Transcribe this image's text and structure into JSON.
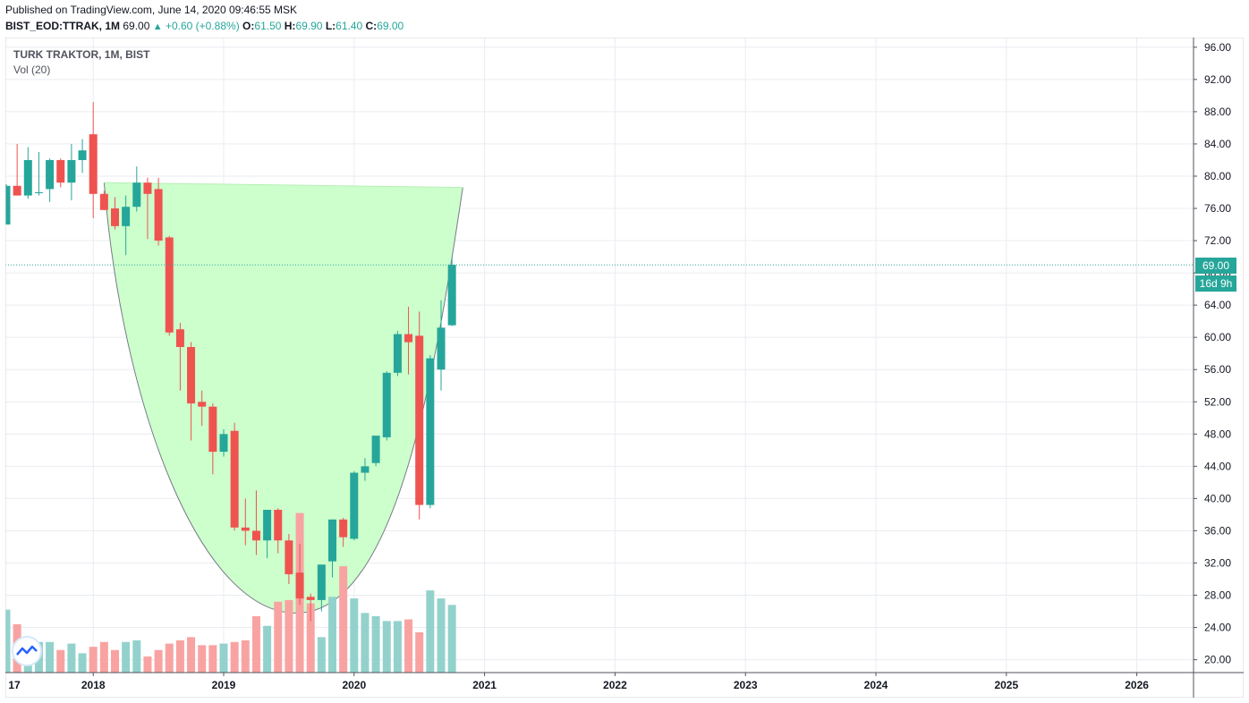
{
  "header": {
    "published": "Published on TradingView.com, June 14, 2020 09:46:55 MSK",
    "symbol": "BIST_EOD:TTRAK, 1M",
    "last": "69.00",
    "change": "+0.60 (+0.88%)",
    "o_label": "O:",
    "o": "61.50",
    "h_label": "H:",
    "h": "69.90",
    "l_label": "L:",
    "l": "61.40",
    "c_label": "C:",
    "c": "69.00"
  },
  "legend": {
    "title": "TURK TRAKTOR, 1M, BIST",
    "vol": "Vol (20)"
  },
  "price_label": {
    "value": "69.00",
    "countdown": "16d 9h"
  },
  "colors": {
    "up": "#26a69a",
    "down": "#ef5350",
    "vol_up": "#93d2cc",
    "vol_down": "#f8a3a2",
    "cup_fill": "#ccffcc",
    "grid": "#e9ecf1"
  },
  "chart_data": {
    "type": "candlestick",
    "title": "TURK TRAKTOR, 1M, BIST",
    "ylim": [
      18.4,
      97.2
    ],
    "y_ticks": [
      "96.00",
      "92.00",
      "88.00",
      "84.00",
      "80.00",
      "76.00",
      "72.00",
      "68.00",
      "64.00",
      "60.00",
      "56.00",
      "52.00",
      "48.00",
      "44.00",
      "40.00",
      "36.00",
      "32.00",
      "28.00",
      "24.00",
      "20.00"
    ],
    "x_ticks": [
      "17",
      "2018",
      "2019",
      "2020",
      "2021",
      "2022",
      "2023",
      "2024",
      "2025",
      "2026"
    ],
    "x_tick_months": [
      -4,
      8,
      20,
      32,
      44,
      56,
      68,
      80,
      92,
      104
    ],
    "first_month_label": "2017-06",
    "candles": [
      {
        "m": "2017-06",
        "o": 74,
        "h": 79,
        "l": 74,
        "c": 78.8
      },
      {
        "m": "2017-07",
        "o": 78.8,
        "h": 84,
        "l": 77.6,
        "c": 77.6
      },
      {
        "m": "2017-08",
        "o": 77.6,
        "h": 83.6,
        "l": 77.2,
        "c": 82
      },
      {
        "m": "2017-09",
        "o": 78,
        "h": 83,
        "l": 77.6,
        "c": 78
      },
      {
        "m": "2017-10",
        "o": 78.4,
        "h": 82.2,
        "l": 76.8,
        "c": 82
      },
      {
        "m": "2017-11",
        "o": 82,
        "h": 82.2,
        "l": 78.6,
        "c": 79.2
      },
      {
        "m": "2017-12",
        "o": 79.2,
        "h": 84,
        "l": 77,
        "c": 82
      },
      {
        "m": "2018-01",
        "o": 82,
        "h": 84.6,
        "l": 80.4,
        "c": 83.2
      },
      {
        "m": "2018-02",
        "o": 85.2,
        "h": 89.2,
        "l": 74.8,
        "c": 77.8
      },
      {
        "m": "2018-03",
        "o": 77.8,
        "h": 78.2,
        "l": 75.8,
        "c": 75.8
      },
      {
        "m": "2018-04",
        "o": 76,
        "h": 77.4,
        "l": 73.4,
        "c": 73.8
      },
      {
        "m": "2018-05",
        "o": 73.8,
        "h": 77.6,
        "l": 70.2,
        "c": 76.2
      },
      {
        "m": "2018-06",
        "o": 76.2,
        "h": 81.2,
        "l": 75.6,
        "c": 79.2
      },
      {
        "m": "2018-07",
        "o": 79.2,
        "h": 79.8,
        "l": 72.2,
        "c": 77.8
      },
      {
        "m": "2018-08",
        "o": 78.4,
        "h": 79.8,
        "l": 71.4,
        "c": 72
      },
      {
        "m": "2018-09",
        "o": 72.4,
        "h": 72.6,
        "l": 60.2,
        "c": 60.6
      },
      {
        "m": "2018-10",
        "o": 61,
        "h": 61.8,
        "l": 53.4,
        "c": 58.8
      },
      {
        "m": "2018-11",
        "o": 58.8,
        "h": 59.4,
        "l": 47.2,
        "c": 51.8
      },
      {
        "m": "2018-12",
        "o": 52,
        "h": 53.4,
        "l": 49,
        "c": 51.4
      },
      {
        "m": "2019-01",
        "o": 51.4,
        "h": 51.8,
        "l": 43,
        "c": 45.8
      },
      {
        "m": "2019-02",
        "o": 45.8,
        "h": 48.6,
        "l": 45.2,
        "c": 48
      },
      {
        "m": "2019-03",
        "o": 48.4,
        "h": 49.4,
        "l": 36,
        "c": 36.4
      },
      {
        "m": "2019-04",
        "o": 36.4,
        "h": 40,
        "l": 34.2,
        "c": 36
      },
      {
        "m": "2019-05",
        "o": 36,
        "h": 41,
        "l": 33,
        "c": 34.8
      },
      {
        "m": "2019-06",
        "o": 34.8,
        "h": 38.6,
        "l": 32.6,
        "c": 38.6
      },
      {
        "m": "2019-07",
        "o": 38.6,
        "h": 38.8,
        "l": 33.2,
        "c": 34.8
      },
      {
        "m": "2019-08",
        "o": 34.8,
        "h": 35.6,
        "l": 29.4,
        "c": 30.6
      },
      {
        "m": "2019-09",
        "o": 30.8,
        "h": 34.4,
        "l": 26.8,
        "c": 27.6
      },
      {
        "m": "2019-10",
        "o": 27.8,
        "h": 28.2,
        "l": 24.8,
        "c": 27.4
      },
      {
        "m": "2019-11",
        "o": 27.4,
        "h": 31.8,
        "l": 26,
        "c": 31.8
      },
      {
        "m": "2019-12",
        "o": 32.2,
        "h": 37.4,
        "l": 30.2,
        "c": 37.4
      },
      {
        "m": "2020-01",
        "o": 37.4,
        "h": 37.6,
        "l": 34,
        "c": 35.2
      },
      {
        "m": "2020-02",
        "o": 35,
        "h": 43.4,
        "l": 34.8,
        "c": 43.2
      },
      {
        "m": "2020-03",
        "o": 43.2,
        "h": 45,
        "l": 42.2,
        "c": 44
      },
      {
        "m": "2020-04",
        "o": 44.4,
        "h": 47.8,
        "l": 44,
        "c": 47.8
      },
      {
        "m": "2020-05",
        "o": 47.6,
        "h": 55.8,
        "l": 47.2,
        "c": 55.6
      },
      {
        "m": "2020-06",
        "o": 55.6,
        "h": 60.8,
        "l": 55.2,
        "c": 60.4
      },
      {
        "m": "2020-07",
        "o": 60.4,
        "h": 63.8,
        "l": 55.4,
        "c": 59.4
      },
      {
        "m": "2020-08",
        "o": 60.2,
        "h": 63.2,
        "l": 37.4,
        "c": 39.2
      },
      {
        "m": "2020-09",
        "o": 39.2,
        "h": 57.8,
        "l": 38.8,
        "c": 57.4
      },
      {
        "m": "2020-10",
        "o": 56,
        "h": 64.6,
        "l": 53.4,
        "c": 61.2
      },
      {
        "m": "2020-11",
        "o": 61.5,
        "h": 69.9,
        "l": 61.4,
        "c": 69
      }
    ],
    "volume": [
      {
        "v": 26.2,
        "up": true
      },
      {
        "v": 24.4,
        "up": false
      },
      {
        "v": 22.8,
        "up": true
      },
      {
        "v": 22.2,
        "up": true
      },
      {
        "v": 22.2,
        "up": true
      },
      {
        "v": 21.2,
        "up": false
      },
      {
        "v": 22,
        "up": true
      },
      {
        "v": 20.8,
        "up": true
      },
      {
        "v": 21.6,
        "up": false
      },
      {
        "v": 22.2,
        "up": false
      },
      {
        "v": 21.2,
        "up": false
      },
      {
        "v": 22.2,
        "up": true
      },
      {
        "v": 22.4,
        "up": true
      },
      {
        "v": 20.4,
        "up": false
      },
      {
        "v": 21.2,
        "up": false
      },
      {
        "v": 22,
        "up": false
      },
      {
        "v": 22.4,
        "up": false
      },
      {
        "v": 22.8,
        "up": false
      },
      {
        "v": 21.8,
        "up": false
      },
      {
        "v": 21.8,
        "up": false
      },
      {
        "v": 22,
        "up": true
      },
      {
        "v": 22.2,
        "up": false
      },
      {
        "v": 22.4,
        "up": false
      },
      {
        "v": 25.4,
        "up": false
      },
      {
        "v": 24.2,
        "up": true
      },
      {
        "v": 27.2,
        "up": false
      },
      {
        "v": 27.4,
        "up": false
      },
      {
        "v": 38.2,
        "up": false
      },
      {
        "v": 27,
        "up": false
      },
      {
        "v": 22.8,
        "up": true
      },
      {
        "v": 27.8,
        "up": true
      },
      {
        "v": 31.6,
        "up": false
      },
      {
        "v": 27.6,
        "up": true
      },
      {
        "v": 25.8,
        "up": true
      },
      {
        "v": 25.4,
        "up": true
      },
      {
        "v": 24.8,
        "up": true
      },
      {
        "v": 24.8,
        "up": true
      },
      {
        "v": 25,
        "up": false
      },
      {
        "v": 23.4,
        "up": false
      },
      {
        "v": 28.6,
        "up": true
      },
      {
        "v": 27.6,
        "up": true
      },
      {
        "v": 26.8,
        "up": true
      }
    ],
    "cup_pattern": {
      "start": {
        "month": "2018-03",
        "price": 79.2
      },
      "bottom": {
        "month": "2019-09",
        "price": 25.8
      },
      "end": {
        "month": "2020-12",
        "price": 78.6
      }
    },
    "current_price": 69.0
  }
}
